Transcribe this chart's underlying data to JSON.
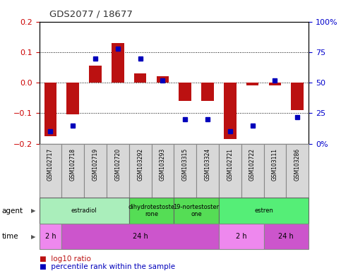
{
  "title": "GDS2077 / 18677",
  "samples": [
    "GSM102717",
    "GSM102718",
    "GSM102719",
    "GSM102720",
    "GSM103292",
    "GSM103293",
    "GSM103315",
    "GSM103324",
    "GSM102721",
    "GSM102722",
    "GSM103111",
    "GSM103286"
  ],
  "log10_ratio": [
    -0.175,
    -0.105,
    0.055,
    0.13,
    0.03,
    0.02,
    -0.06,
    -0.06,
    -0.185,
    -0.01,
    -0.01,
    -0.09
  ],
  "percentile_rank": [
    10,
    15,
    70,
    78,
    70,
    52,
    20,
    20,
    10,
    15,
    52,
    22
  ],
  "ylim": [
    -0.2,
    0.2
  ],
  "yticks": [
    -0.2,
    -0.1,
    0.0,
    0.1,
    0.2
  ],
  "right_yticks": [
    0,
    25,
    50,
    75,
    100
  ],
  "right_ylabels": [
    "0%",
    "25",
    "50",
    "75",
    "100%"
  ],
  "hlines": [
    -0.1,
    0.0,
    0.1
  ],
  "agent_groups": [
    {
      "label": "estradiol",
      "start": 0,
      "end": 4,
      "color": "#AAEEBB"
    },
    {
      "label": "dihydrotestoste\nrone",
      "start": 4,
      "end": 6,
      "color": "#55DD55"
    },
    {
      "label": "19-nortestoster\none",
      "start": 6,
      "end": 8,
      "color": "#55DD55"
    },
    {
      "label": "estren",
      "start": 8,
      "end": 12,
      "color": "#55EE77"
    }
  ],
  "time_groups": [
    {
      "label": "2 h",
      "start": 0,
      "end": 1,
      "color": "#EE88EE"
    },
    {
      "label": "24 h",
      "start": 1,
      "end": 8,
      "color": "#CC55CC"
    },
    {
      "label": "2 h",
      "start": 8,
      "end": 10,
      "color": "#EE88EE"
    },
    {
      "label": "24 h",
      "start": 10,
      "end": 12,
      "color": "#CC55CC"
    }
  ],
  "bar_color": "#BB1111",
  "point_color": "#0000BB",
  "title_color": "#333333",
  "left_label_color": "#CC0000",
  "right_label_color": "#0000CC",
  "legend_red": "log10 ratio",
  "legend_blue": "percentile rank within the sample",
  "agent_label_color": "#228B22",
  "time_label_color": "#AA00AA"
}
